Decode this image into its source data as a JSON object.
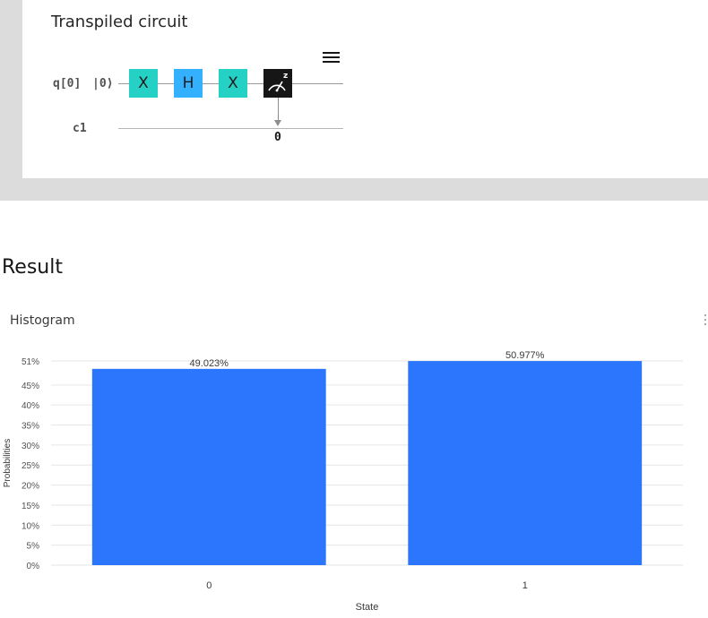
{
  "circuit": {
    "title": "Transpiled circuit",
    "qubit_label": "q[0]",
    "initial_state": "|0⟩",
    "classical_label": "c1",
    "gates": [
      "X",
      "H",
      "X"
    ],
    "measure_basis": "z",
    "classical_bit": "0",
    "menu_icon": "menu-icon"
  },
  "result": {
    "section_title": "Result",
    "card_title": "Histogram",
    "overflow_icon": "overflow-menu-icon"
  },
  "chart_data": {
    "type": "bar",
    "categories": [
      "0",
      "1"
    ],
    "values": [
      49.023,
      50.977
    ],
    "data_labels": [
      "49.023%",
      "50.977%"
    ],
    "xlabel": "State",
    "ylabel": "Probabilities",
    "ylim": [
      0,
      51
    ],
    "yticks": [
      "0%",
      "5%",
      "10%",
      "15%",
      "20%",
      "25%",
      "30%",
      "35%",
      "40%",
      "45%",
      "51%"
    ],
    "ytick_values": [
      0,
      5,
      10,
      15,
      20,
      25,
      30,
      35,
      40,
      45,
      51
    ],
    "grid": true,
    "bar_color": "#2b76fc"
  }
}
